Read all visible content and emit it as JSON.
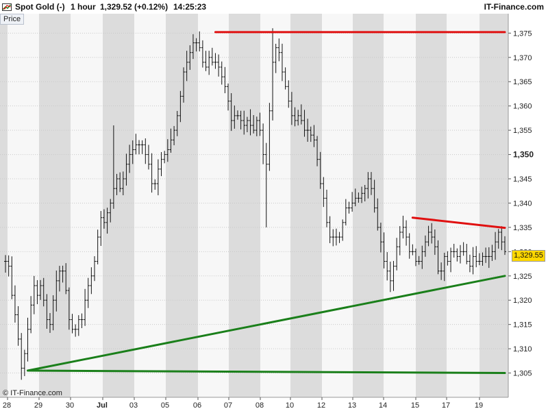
{
  "header": {
    "instrument": "Spot Gold (-)",
    "interval": "1 hour",
    "last_change": "1,329.52 (+0.12%)",
    "time": "14:25:23",
    "brand": "IT-Finance.com"
  },
  "panel_label": "Price",
  "copyright": "© IT-Finance.com",
  "last_price_label": "1,329.55",
  "colors": {
    "up_trendlines": "#1a7f1a",
    "resistance": "#e01010",
    "price_tag": "#ffd800",
    "bars": "#111111"
  },
  "chart_data": {
    "type": "ohlc",
    "title": "",
    "xlabel": "",
    "ylabel": "",
    "ylim": [
      1300,
      1379
    ],
    "y_ticks": [
      1305,
      1310,
      1315,
      1320,
      1325,
      1330,
      1335,
      1340,
      1345,
      1350,
      1355,
      1360,
      1365,
      1370,
      1375
    ],
    "y_tick_labels": [
      "1,305",
      "1,310",
      "1,315",
      "1,320",
      "1,325",
      "1,330",
      "1,335",
      "1,340",
      "1,345",
      "1,350",
      "1,355",
      "1,360",
      "1,365",
      "1,370",
      "1,375"
    ],
    "x_tick_labels": [
      "28",
      "29",
      "30",
      "Jul",
      "03",
      "05",
      "06",
      "07",
      "08",
      "10",
      "12",
      "13",
      "14",
      "15",
      "17",
      "19"
    ],
    "grid": true,
    "path": [
      [
        0,
        1328
      ],
      [
        1,
        1327
      ],
      [
        2,
        1321
      ],
      [
        3,
        1317
      ],
      [
        4,
        1312
      ],
      [
        5,
        1306
      ],
      [
        6,
        1309
      ],
      [
        7,
        1314
      ],
      [
        8,
        1319
      ],
      [
        9,
        1323
      ],
      [
        10,
        1321
      ],
      [
        11,
        1323
      ],
      [
        12,
        1320
      ],
      [
        13,
        1316
      ],
      [
        14,
        1315
      ],
      [
        15,
        1320
      ],
      [
        16,
        1324
      ],
      [
        17,
        1326
      ],
      [
        18,
        1326
      ],
      [
        19,
        1322
      ],
      [
        20,
        1316
      ],
      [
        21,
        1314
      ],
      [
        22,
        1314
      ],
      [
        23,
        1316
      ],
      [
        24,
        1316
      ],
      [
        25,
        1320
      ],
      [
        26,
        1323
      ],
      [
        27,
        1325
      ],
      [
        28,
        1328
      ],
      [
        29,
        1333
      ],
      [
        30,
        1337
      ],
      [
        31,
        1336
      ],
      [
        32,
        1338
      ],
      [
        33,
        1340
      ],
      [
        34,
        1343
      ],
      [
        35,
        1345
      ],
      [
        36,
        1343
      ],
      [
        37,
        1345
      ],
      [
        38,
        1348
      ],
      [
        39,
        1350
      ],
      [
        40,
        1351
      ],
      [
        41,
        1352
      ],
      [
        42,
        1352
      ],
      [
        43,
        1352
      ],
      [
        44,
        1350
      ],
      [
        45,
        1348
      ],
      [
        46,
        1344
      ],
      [
        47,
        1344
      ],
      [
        48,
        1347
      ],
      [
        49,
        1349
      ],
      [
        50,
        1350
      ],
      [
        51,
        1351
      ],
      [
        52,
        1353
      ],
      [
        53,
        1355
      ],
      [
        54,
        1358
      ],
      [
        55,
        1362
      ],
      [
        56,
        1367
      ],
      [
        57,
        1369
      ],
      [
        58,
        1371
      ],
      [
        59,
        1373
      ],
      [
        60,
        1373
      ],
      [
        61,
        1372
      ],
      [
        62,
        1369
      ],
      [
        63,
        1368
      ],
      [
        64,
        1370
      ],
      [
        65,
        1369
      ],
      [
        66,
        1369
      ],
      [
        67,
        1368
      ],
      [
        68,
        1366
      ],
      [
        69,
        1364
      ],
      [
        70,
        1361
      ],
      [
        71,
        1357
      ],
      [
        72,
        1358
      ],
      [
        73,
        1358
      ],
      [
        74,
        1357
      ],
      [
        75,
        1356
      ],
      [
        76,
        1357
      ],
      [
        77,
        1356
      ],
      [
        78,
        1355
      ],
      [
        79,
        1357
      ],
      [
        80,
        1355
      ],
      [
        81,
        1350
      ],
      [
        82,
        1348
      ],
      [
        83,
        1359
      ],
      [
        84,
        1369
      ],
      [
        85,
        1372
      ],
      [
        86,
        1371
      ],
      [
        87,
        1367
      ],
      [
        88,
        1364
      ],
      [
        89,
        1361
      ],
      [
        90,
        1358
      ],
      [
        91,
        1357
      ],
      [
        92,
        1358
      ],
      [
        93,
        1357
      ],
      [
        94,
        1355
      ],
      [
        95,
        1355
      ],
      [
        96,
        1354
      ],
      [
        97,
        1353
      ],
      [
        98,
        1349
      ],
      [
        99,
        1344
      ],
      [
        100,
        1341
      ],
      [
        101,
        1336
      ],
      [
        102,
        1333
      ],
      [
        103,
        1333
      ],
      [
        104,
        1333
      ],
      [
        105,
        1333
      ],
      [
        106,
        1336
      ],
      [
        107,
        1339
      ],
      [
        108,
        1339
      ],
      [
        109,
        1340
      ],
      [
        110,
        1341
      ],
      [
        111,
        1341
      ],
      [
        112,
        1342
      ],
      [
        113,
        1343
      ],
      [
        114,
        1345
      ],
      [
        115,
        1343
      ],
      [
        116,
        1339
      ],
      [
        117,
        1335
      ],
      [
        118,
        1332
      ],
      [
        119,
        1328
      ],
      [
        120,
        1326
      ],
      [
        121,
        1324
      ],
      [
        122,
        1327
      ],
      [
        123,
        1331
      ],
      [
        124,
        1334
      ],
      [
        125,
        1335
      ],
      [
        126,
        1333
      ],
      [
        127,
        1330
      ],
      [
        128,
        1330
      ],
      [
        129,
        1328
      ],
      [
        130,
        1328
      ],
      [
        131,
        1330
      ],
      [
        132,
        1332
      ],
      [
        133,
        1334
      ],
      [
        134,
        1333
      ],
      [
        135,
        1331
      ],
      [
        136,
        1326
      ],
      [
        137,
        1326
      ],
      [
        138,
        1329
      ],
      [
        139,
        1328
      ],
      [
        140,
        1330
      ],
      [
        141,
        1330
      ],
      [
        142,
        1329
      ],
      [
        143,
        1330
      ],
      [
        144,
        1330
      ],
      [
        145,
        1328
      ],
      [
        146,
        1327
      ],
      [
        147,
        1329
      ],
      [
        148,
        1328
      ],
      [
        149,
        1328
      ],
      [
        150,
        1329
      ],
      [
        151,
        1329
      ],
      [
        152,
        1329
      ],
      [
        153,
        1330
      ],
      [
        154,
        1332
      ],
      [
        155,
        1334
      ],
      [
        156,
        1332
      ],
      [
        157,
        1330
      ]
    ],
    "spikes": [
      [
        34,
        1356
      ],
      [
        82,
        1335
      ],
      [
        84,
        1376
      ]
    ],
    "trendlines": [
      {
        "color": "#e01010",
        "x0": 66,
        "y0": 1375.2,
        "x1": 157,
        "y1": 1375.2
      },
      {
        "color": "#e01010",
        "x0": 128,
        "y0": 1337.0,
        "x1": 157,
        "y1": 1334.9
      },
      {
        "color": "#1a7f1a",
        "x0": 7,
        "y0": 1305.5,
        "x1": 157,
        "y1": 1325.0
      },
      {
        "color": "#1a7f1a",
        "x0": 7,
        "y0": 1305.5,
        "x1": 157,
        "y1": 1305.0
      }
    ]
  }
}
